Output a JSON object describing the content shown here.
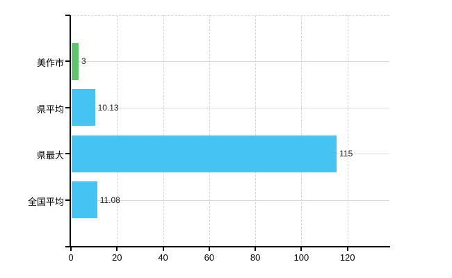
{
  "chart_data": {
    "type": "bar",
    "orientation": "horizontal",
    "title": "",
    "xlabel": "",
    "ylabel": "",
    "categories": [
      "美作市",
      "県平均",
      "県最大",
      "全国平均"
    ],
    "series": [
      {
        "name": "値",
        "values": [
          3,
          10.13,
          115,
          11.08
        ],
        "value_labels": [
          "3",
          "10.13",
          "115",
          "11.08"
        ],
        "bar_colors": [
          "#60c46e",
          "#45c4f4",
          "#45c4f4",
          "#45c4f4"
        ]
      }
    ],
    "x_ticks": [
      0,
      20,
      40,
      60,
      80,
      100,
      120
    ],
    "x_tick_labels": [
      "0",
      "20",
      "40",
      "60",
      "80",
      "100",
      "120"
    ],
    "xlim": [
      0,
      138.5
    ],
    "grid": {
      "vertical": "dashed",
      "horizontal": "solid-at-category-centers",
      "top_border": "dashed"
    },
    "legend": "none",
    "colors": {
      "axis": "#000000",
      "grid_vertical": "#d6d0d2",
      "grid_horizontal": "#d4dad4",
      "value_label_text": "#222222",
      "tick_label_text": "#000000",
      "background": "#ffffff"
    }
  }
}
